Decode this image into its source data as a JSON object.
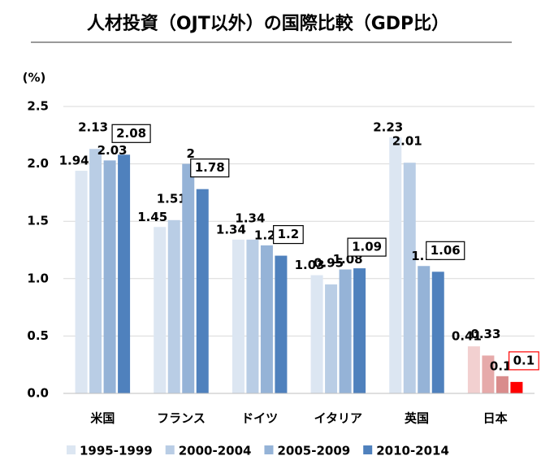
{
  "chart_data": {
    "type": "bar",
    "title": "人材投資（OJT以外）の国際比較（GDP比）",
    "y_label": "(%)",
    "categories": [
      "米国",
      "フランス",
      "ドイツ",
      "イタリア",
      "英国",
      "日本"
    ],
    "series": [
      {
        "name": "1995-1999",
        "color": "#dce6f2",
        "colors": [
          "#dce6f2",
          "#dce6f2",
          "#dce6f2",
          "#dce6f2",
          "#dce6f2",
          "#f2d0d0"
        ],
        "values": [
          1.94,
          1.45,
          1.34,
          1.03,
          2.23,
          0.41
        ]
      },
      {
        "name": "2000-2004",
        "color": "#b9cde5",
        "colors": [
          "#b9cde5",
          "#b9cde5",
          "#b9cde5",
          "#b9cde5",
          "#b9cde5",
          "#e6aaaa"
        ],
        "values": [
          2.13,
          1.51,
          1.34,
          0.95,
          2.01,
          0.33
        ]
      },
      {
        "name": "2005-2009",
        "color": "#95b3d7",
        "colors": [
          "#95b3d7",
          "#95b3d7",
          "#95b3d7",
          "#95b3d7",
          "#95b3d7",
          "#d98c8c"
        ],
        "values": [
          2.03,
          2,
          1.29,
          1.08,
          1.11,
          0.15
        ]
      },
      {
        "name": "2010-2014",
        "color": "#4f81bd",
        "colors": [
          "#4f81bd",
          "#4f81bd",
          "#4f81bd",
          "#4f81bd",
          "#4f81bd",
          "#ff0000"
        ],
        "values": [
          2.08,
          1.78,
          1.2,
          1.09,
          1.06,
          0.1
        ],
        "label_box": true
      }
    ],
    "ylim": [
      0,
      2.5
    ],
    "yticks": [
      {
        "value": 0,
        "label": "0.0"
      },
      0.5,
      {
        "value": 1,
        "label": "1.0"
      },
      1.5,
      {
        "value": 2,
        "label": "2.0"
      },
      2.5
    ],
    "grid": true,
    "legend": "bottom"
  }
}
